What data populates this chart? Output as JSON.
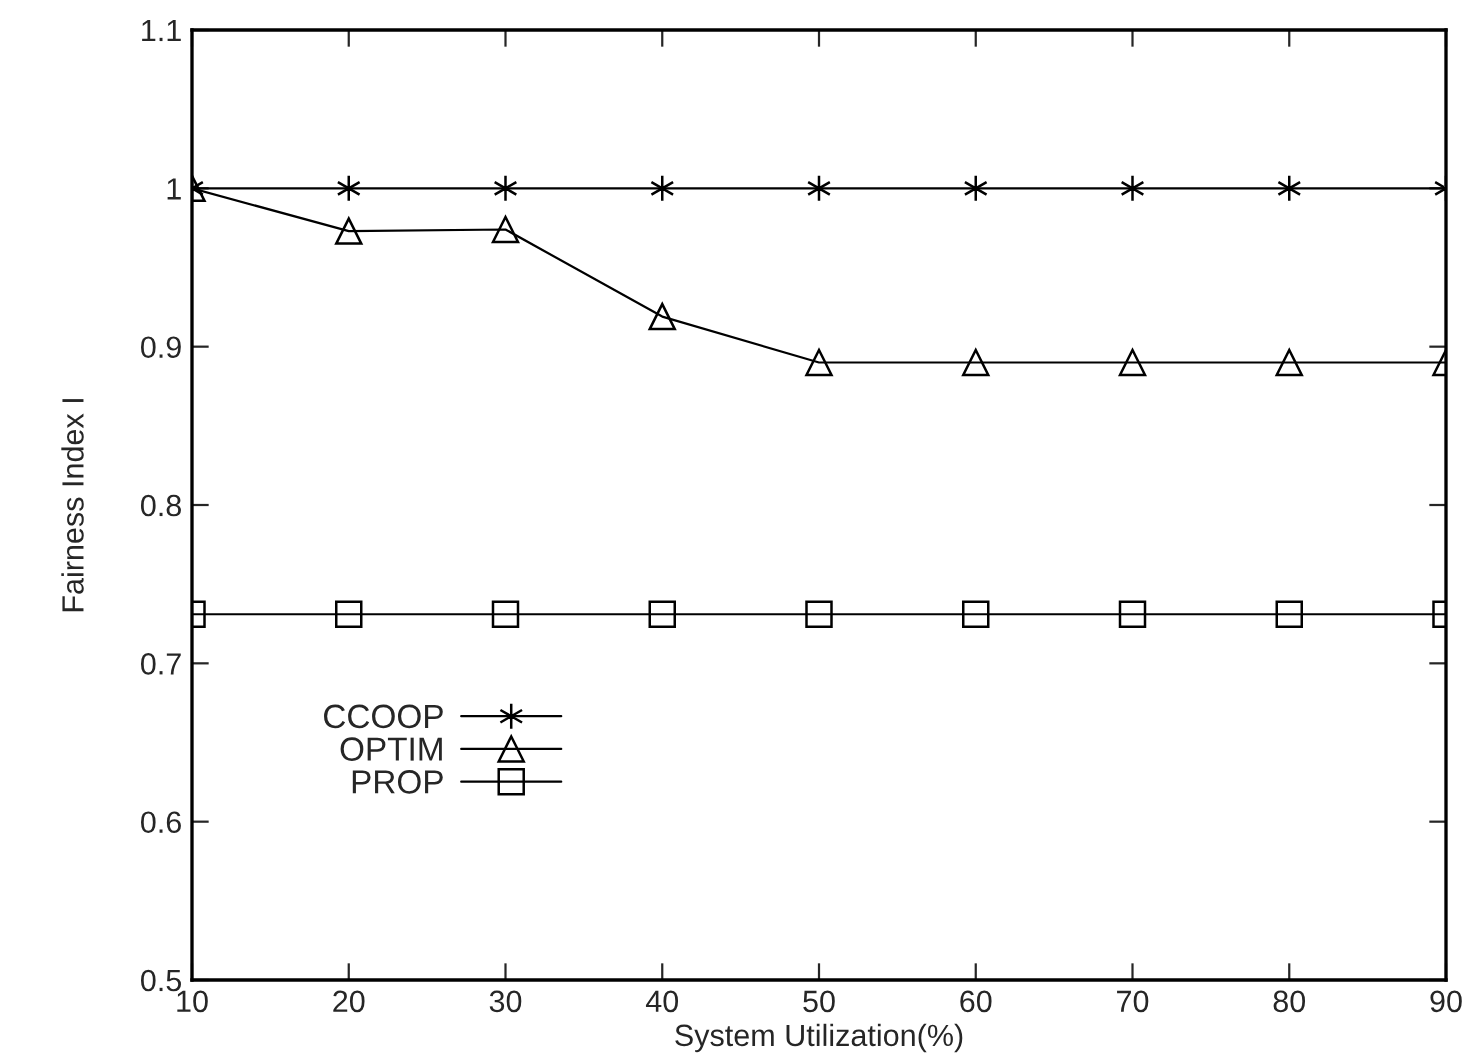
{
  "chart_data": {
    "type": "line",
    "xlabel": "System Utilization(%)",
    "ylabel": "Fairness Index I",
    "x": [
      10,
      20,
      30,
      40,
      50,
      60,
      70,
      80,
      90
    ],
    "series": [
      {
        "name": "CCOOP",
        "color": "#000000",
        "marker": "cross",
        "values": [
          1.0,
          1.0,
          1.0,
          1.0,
          1.0,
          1.0,
          1.0,
          1.0,
          1.0
        ]
      },
      {
        "name": "OPTIM",
        "color": "#000000",
        "marker": "triangle",
        "values": [
          1.0,
          0.973,
          0.974,
          0.919,
          0.89,
          0.89,
          0.89,
          0.89,
          0.89
        ]
      },
      {
        "name": "PROP",
        "color": "#000000",
        "marker": "square",
        "values": [
          0.731,
          0.731,
          0.731,
          0.731,
          0.731,
          0.731,
          0.731,
          0.731,
          0.731
        ]
      }
    ],
    "xlim": [
      10,
      90
    ],
    "xticks": [
      10,
      20,
      30,
      40,
      50,
      60,
      70,
      80,
      90
    ],
    "ylim": [
      0.5,
      1.1
    ],
    "yticks": [
      0.5,
      0.6,
      0.7,
      0.8,
      0.9,
      1,
      1.1
    ],
    "grid": false,
    "legend": "center left",
    "line_style": "solid"
  }
}
